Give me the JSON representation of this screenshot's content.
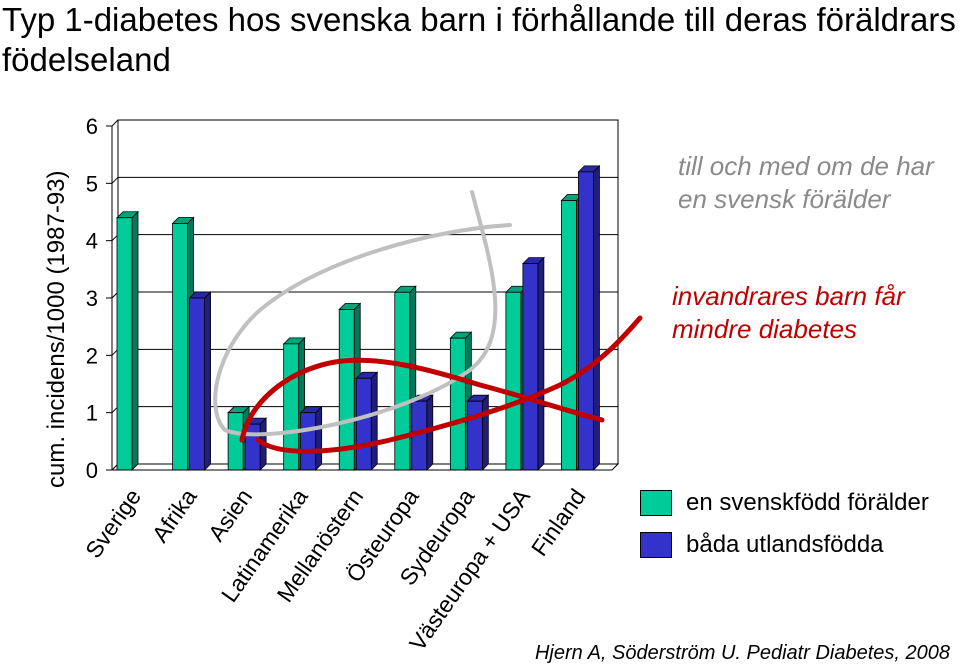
{
  "chart_data": {
    "type": "bar",
    "title": "Typ 1-diabetes hos svenska barn i förhållande till deras föräldrars födelseland",
    "ylabel": "cum. incidens/1000 (1987-93)",
    "xlabel": "",
    "ylim": [
      0,
      6
    ],
    "yticks": [
      "0",
      "1",
      "2",
      "3",
      "4",
      "5",
      "6"
    ],
    "grid": true,
    "categories": [
      "Sverige",
      "Afrika",
      "Asien",
      "Latinamerika",
      "Mellanöstern",
      "Östeuropa",
      "Sydeuropa",
      "Västeuropa + USA",
      "Finland"
    ],
    "series": [
      {
        "name": "en svenskfödd förälder",
        "color": "#00cc99",
        "values": [
          4.4,
          4.3,
          1.0,
          2.2,
          2.8,
          3.1,
          2.3,
          3.1,
          4.7
        ]
      },
      {
        "name": "båda utlandsfödda",
        "color": "#3333cc",
        "values": [
          null,
          3.0,
          0.8,
          1.0,
          1.6,
          1.2,
          1.2,
          3.6,
          5.2
        ]
      }
    ],
    "legend_position": "right"
  },
  "annotations": {
    "grey_text": "till och med om de har en svensk förälder",
    "red_text": "invandrares barn får mindre diabetes",
    "grey_color": "#c0c0c0",
    "red_color": "#c00000"
  },
  "source": "Hjern A, Söderström U. Pediatr Diabetes, 2008"
}
